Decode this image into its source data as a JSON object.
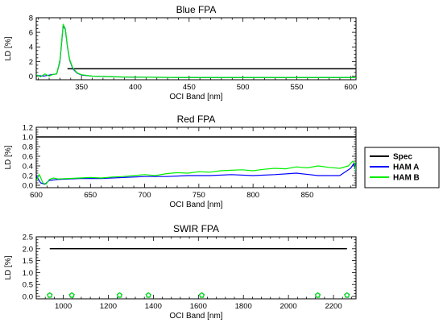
{
  "colors": {
    "spec": "#000000",
    "ham_a": "#0000ff",
    "ham_b": "#00ee00",
    "axis": "#000000",
    "background": "#ffffff"
  },
  "legend": {
    "placement": "right",
    "entries": [
      "Spec",
      "HAM A",
      "HAM B"
    ]
  },
  "chart_data": [
    {
      "type": "line",
      "title": "Blue FPA",
      "xlabel": "OCI Band [nm]",
      "ylabel": "LD [%]",
      "xlim": [
        308,
        605
      ],
      "ylim": [
        -0.5,
        8
      ],
      "xticks": [
        350,
        400,
        450,
        500,
        550,
        600
      ],
      "yticks": [
        0,
        2,
        4,
        6,
        8
      ],
      "spec": {
        "x": [
          337,
          605
        ],
        "y": [
          1.0,
          1.0
        ]
      },
      "series": [
        {
          "name": "HAM A",
          "x": [
            308,
            315,
            322,
            327,
            330,
            333,
            335,
            337,
            339,
            342,
            346,
            350,
            360,
            380,
            400,
            450,
            500,
            550,
            605
          ],
          "y": [
            0.1,
            0.0,
            0.2,
            0.3,
            2.0,
            6.9,
            6.4,
            4.0,
            2.2,
            1.0,
            0.4,
            0.15,
            0.0,
            -0.1,
            -0.15,
            -0.2,
            -0.2,
            -0.2,
            -0.2
          ]
        },
        {
          "name": "HAM B",
          "x": [
            308,
            312,
            316,
            320,
            324,
            327,
            330,
            333,
            335,
            337,
            339,
            342,
            346,
            350,
            360,
            380,
            400,
            450,
            500,
            550,
            605
          ],
          "y": [
            0.2,
            -0.1,
            0.3,
            0.0,
            0.25,
            0.3,
            2.2,
            7.1,
            6.5,
            4.1,
            2.3,
            1.1,
            0.45,
            0.2,
            0.0,
            -0.1,
            -0.15,
            -0.2,
            -0.2,
            -0.2,
            -0.2
          ]
        }
      ]
    },
    {
      "type": "line",
      "title": "Red FPA",
      "xlabel": "OCI Band [nm]",
      "ylabel": "LD [%]",
      "xlim": [
        600,
        895
      ],
      "ylim": [
        -0.05,
        1.2
      ],
      "xticks": [
        600,
        650,
        700,
        750,
        800,
        850
      ],
      "yticks": [
        0.0,
        0.2,
        0.4,
        0.6,
        0.8,
        1.0,
        1.2
      ],
      "spec": {
        "x": [
          600,
          895
        ],
        "y": [
          1.0,
          1.0
        ]
      },
      "series": [
        {
          "name": "HAM A",
          "x": [
            600,
            604,
            608,
            612,
            620,
            640,
            660,
            680,
            700,
            720,
            740,
            760,
            780,
            800,
            820,
            840,
            860,
            880,
            890,
            893,
            895
          ],
          "y": [
            0.2,
            0.05,
            0.02,
            0.1,
            0.12,
            0.14,
            0.14,
            0.16,
            0.18,
            0.18,
            0.2,
            0.2,
            0.22,
            0.2,
            0.22,
            0.25,
            0.2,
            0.2,
            0.35,
            0.45,
            0.3
          ]
        },
        {
          "name": "HAM B",
          "x": [
            600,
            603,
            606,
            609,
            612,
            616,
            620,
            630,
            640,
            650,
            660,
            670,
            680,
            690,
            700,
            710,
            720,
            730,
            740,
            750,
            760,
            770,
            780,
            790,
            800,
            810,
            820,
            830,
            840,
            850,
            860,
            870,
            880,
            888,
            892,
            894,
            895
          ],
          "y": [
            0.1,
            0.22,
            0.05,
            0.02,
            0.12,
            0.15,
            0.13,
            0.14,
            0.15,
            0.16,
            0.15,
            0.17,
            0.18,
            0.2,
            0.22,
            0.2,
            0.24,
            0.26,
            0.25,
            0.28,
            0.27,
            0.3,
            0.31,
            0.32,
            0.3,
            0.33,
            0.35,
            0.34,
            0.38,
            0.36,
            0.4,
            0.37,
            0.35,
            0.4,
            0.5,
            0.45,
            0.3
          ]
        }
      ]
    },
    {
      "type": "scatter",
      "title": "SWIR FPA",
      "xlabel": "OCI Band [nm]",
      "ylabel": "LD [%]",
      "xlim": [
        880,
        2300
      ],
      "ylim": [
        -0.1,
        2.5
      ],
      "xticks": [
        1000,
        1200,
        1400,
        1600,
        1800,
        2000,
        2200
      ],
      "yticks": [
        0.0,
        0.5,
        1.0,
        1.5,
        2.0,
        2.5
      ],
      "spec": {
        "x": [
          940,
          2260
        ],
        "y": [
          2.0,
          2.0
        ]
      },
      "series": [
        {
          "name": "HAM A",
          "x": [
            940,
            1038,
            1250,
            1378,
            1615,
            2130,
            2260
          ],
          "y": [
            0.05,
            0.05,
            0.05,
            0.05,
            0.05,
            0.05,
            0.05
          ]
        },
        {
          "name": "HAM B",
          "x": [
            940,
            1038,
            1250,
            1378,
            1615,
            2130,
            2260
          ],
          "y": [
            0.05,
            0.05,
            0.05,
            0.05,
            0.05,
            0.05,
            0.05
          ]
        }
      ]
    }
  ]
}
